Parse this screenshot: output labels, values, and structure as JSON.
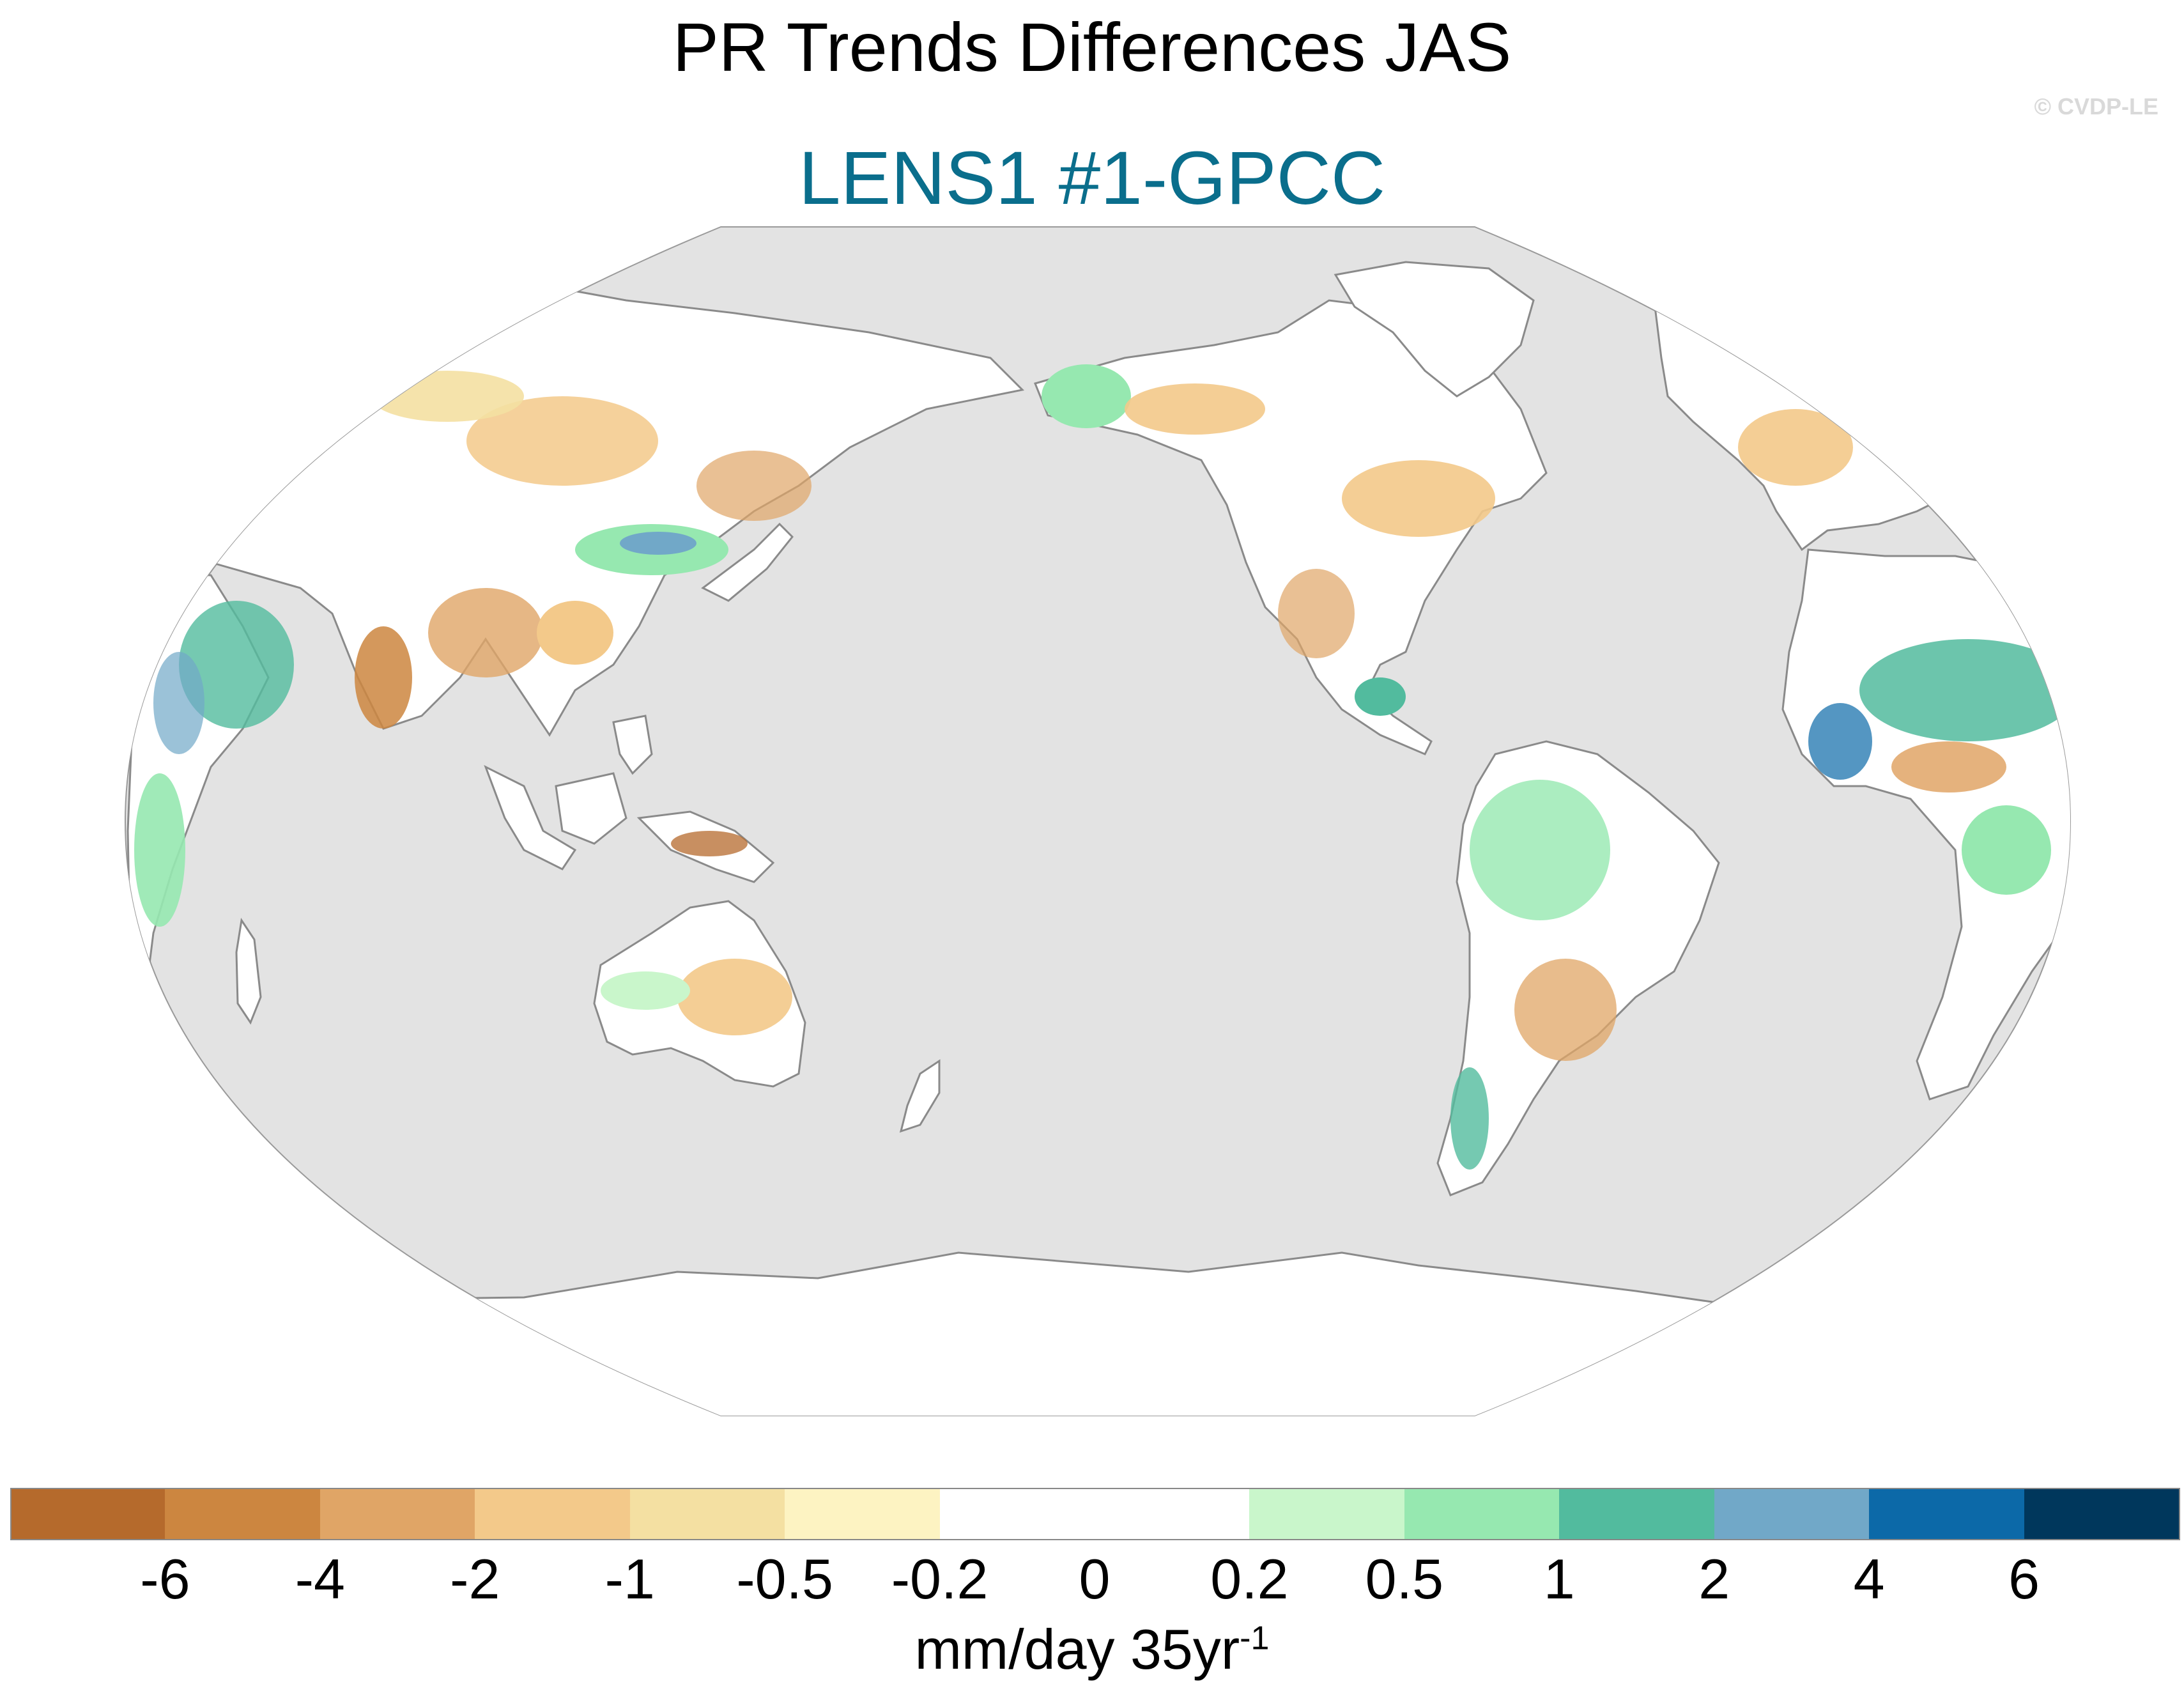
{
  "title": "PR Trends Differences JAS",
  "subtitle": "LENS1 #1-GPCC",
  "credit": "© CVDP-LE",
  "colorbar": {
    "units_main": "mm/day 35yr",
    "units_sup": "-1",
    "colors": [
      "#b56a2c",
      "#cc8640",
      "#e0a566",
      "#f3c98a",
      "#f4e0a2",
      "#fdf3c2",
      "#ffffff",
      "#ffffff",
      "#c9f6cb",
      "#96e8b0",
      "#52bb9e",
      "#71a8c8",
      "#0c69a8",
      "#00375c"
    ],
    "labels": [
      "-6",
      "-4",
      "-2",
      "-1",
      "-0.5",
      "-0.2",
      "0",
      "0.2",
      "0.5",
      "1",
      "2",
      "4",
      "6"
    ]
  },
  "map": {
    "projection": "Robinson (centered 180°)",
    "ocean_color": "#e3e3e3",
    "land_color": "#ffffff",
    "coast_color": "#8a8a8a"
  }
}
